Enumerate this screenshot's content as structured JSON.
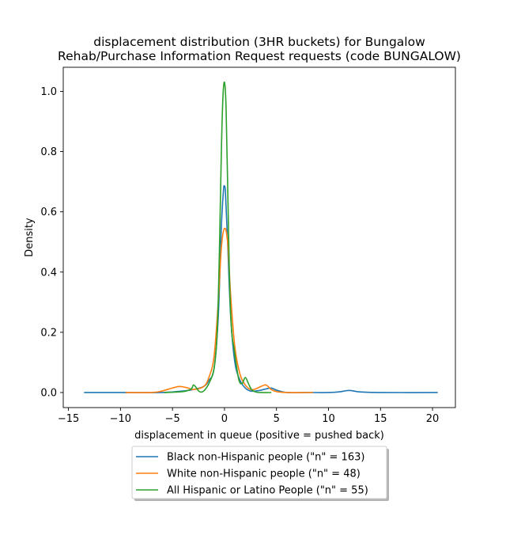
{
  "chart_data": {
    "type": "line",
    "title_line1": "displacement distribution (3HR buckets) for Bungalow",
    "title_line2": "Rehab/Purchase Information Request requests (code BUNGALOW)",
    "xlabel": "displacement in queue (positive = pushed back)",
    "ylabel": "Density",
    "xlim": [
      -15.5,
      22.2
    ],
    "ylim": [
      -0.05,
      1.08
    ],
    "xticks": [
      -15,
      -10,
      -5,
      0,
      5,
      10,
      15,
      20
    ],
    "xtick_labels": [
      "−15",
      "−10",
      "−5",
      "0",
      "5",
      "10",
      "15",
      "20"
    ],
    "yticks": [
      0.0,
      0.2,
      0.4,
      0.6,
      0.8,
      1.0
    ],
    "ytick_labels": [
      "0.0",
      "0.2",
      "0.4",
      "0.6",
      "0.8",
      "1.0"
    ],
    "grid": false,
    "legend_placement": "below plot, centered",
    "series": [
      {
        "name": "Black non-Hispanic people (\"n\" = 163)",
        "color": "#1f77b4",
        "x": [
          -13.5,
          -10,
          -6,
          -4,
          -3,
          -2,
          -1.5,
          -1,
          -0.6,
          -0.3,
          -0.1,
          0,
          0.1,
          0.3,
          0.6,
          1,
          1.5,
          2,
          2.5,
          3,
          3.5,
          4,
          4.5,
          5,
          6,
          8,
          10,
          11,
          12,
          13,
          15,
          20.5
        ],
        "y": [
          0.0,
          0.0,
          0.0,
          0.005,
          0.01,
          0.02,
          0.04,
          0.08,
          0.25,
          0.55,
          0.67,
          0.685,
          0.66,
          0.5,
          0.25,
          0.1,
          0.04,
          0.015,
          0.005,
          0.005,
          0.008,
          0.012,
          0.015,
          0.008,
          0.0,
          0.0,
          0.0,
          0.002,
          0.007,
          0.002,
          0.0,
          0.0
        ]
      },
      {
        "name": "White non-Hispanic people (\"n\" = 48)",
        "color": "#ff7f0e",
        "x": [
          -9.5,
          -7,
          -6,
          -5,
          -4.3,
          -3.5,
          -3,
          -2,
          -1.5,
          -1,
          -0.6,
          -0.3,
          0,
          0.3,
          0.6,
          1,
          1.5,
          2,
          2.5,
          3,
          3.5,
          4,
          4.5,
          5,
          6,
          8.5
        ],
        "y": [
          0.0,
          0.0,
          0.005,
          0.015,
          0.02,
          0.015,
          0.01,
          0.02,
          0.05,
          0.12,
          0.3,
          0.48,
          0.545,
          0.5,
          0.32,
          0.15,
          0.06,
          0.025,
          0.01,
          0.012,
          0.02,
          0.025,
          0.01,
          0.003,
          0.0,
          0.0
        ]
      },
      {
        "name": "All Hispanic or Latino People (\"n\" = 55)",
        "color": "#2ca02c",
        "x": [
          -5.8,
          -4,
          -3.2,
          -3.0,
          -2.8,
          -2.4,
          -2.0,
          -1.5,
          -1.0,
          -0.7,
          -0.5,
          -0.3,
          -0.15,
          0,
          0.15,
          0.3,
          0.5,
          0.7,
          0.9,
          1.1,
          1.4,
          1.7,
          2.0,
          2.3,
          2.6,
          3.0,
          3.5,
          4.5
        ],
        "y": [
          0.0,
          0.003,
          0.012,
          0.025,
          0.02,
          0.003,
          0.005,
          0.03,
          0.08,
          0.2,
          0.45,
          0.8,
          0.98,
          1.03,
          0.95,
          0.7,
          0.35,
          0.2,
          0.15,
          0.1,
          0.04,
          0.03,
          0.05,
          0.03,
          0.01,
          0.002,
          0.0,
          0.0
        ]
      }
    ]
  }
}
